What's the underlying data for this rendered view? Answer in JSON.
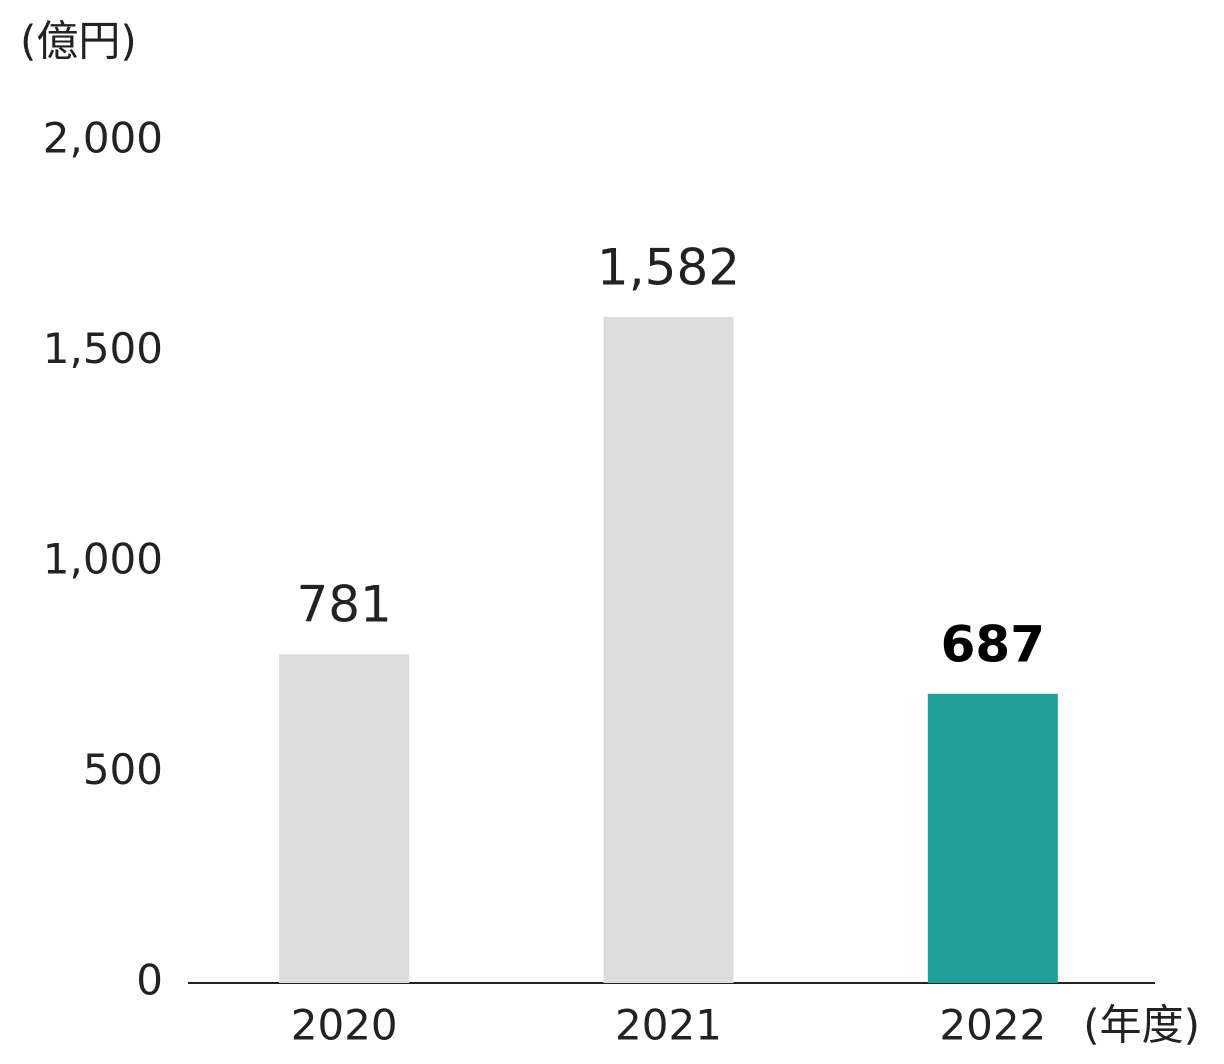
{
  "chart_data": {
    "type": "bar",
    "y_axis_label": "(億円)",
    "x_axis_label": "(年度)",
    "categories": [
      "2020",
      "2021",
      "2022"
    ],
    "values": [
      781,
      1582,
      687
    ],
    "value_labels": [
      "781",
      "1,582",
      "687"
    ],
    "colors": [
      "#dcdddc",
      "#dcdddc",
      "#239e98"
    ],
    "ylim": [
      0,
      2000
    ],
    "yticks": [
      0,
      500,
      {
        "value": 1000,
        "label": "1,000"
      },
      {
        "value": 1500,
        "label": "1,500"
      },
      {
        "value": 2000,
        "label": "2,000"
      }
    ],
    "grid": false
  }
}
